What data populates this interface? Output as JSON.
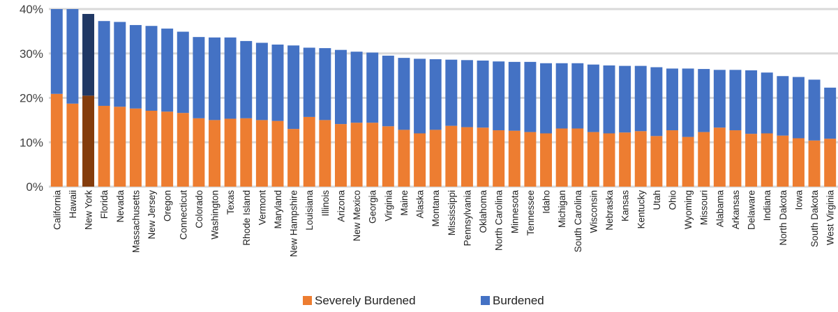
{
  "chart_data": {
    "type": "bar",
    "stacked": true,
    "ylim": [
      0,
      40
    ],
    "yticks": [
      "0%",
      "10%",
      "20%",
      "30%",
      "40%"
    ],
    "ytick_values": [
      0,
      10,
      20,
      30,
      40
    ],
    "grid": true,
    "legend_position": "bottom",
    "categories": [
      "California",
      "Hawaii",
      "New York",
      "Florida",
      "Nevada",
      "Massachusetts",
      "New Jersey",
      "Oregon",
      "Connecticut",
      "Colorado",
      "Washington",
      "Texas",
      "Rhode Island",
      "Vermont",
      "Maryland",
      "New Hampshire",
      "Louisiana",
      "Illinois",
      "Arizona",
      "New Mexico",
      "Georgia",
      "Virginia",
      "Maine",
      "Alaska",
      "Montana",
      "Mississippi",
      "Pennsylvania",
      "Oklahoma",
      "North Carolina",
      "Minnesota",
      "Tennessee",
      "Idaho",
      "Michigan",
      "South Carolina",
      "Wisconsin",
      "Nebraska",
      "Kansas",
      "Kentucky",
      "Utah",
      "Ohio",
      "Wyoming",
      "Missouri",
      "Alabama",
      "Arkansas",
      "Delaware",
      "Indiana",
      "North Dakota",
      "Iowa",
      "South Dakota",
      "West Virginia"
    ],
    "highlight_category": "New York",
    "series": [
      {
        "name": "Severely Burdened",
        "color": "#ED7D31",
        "highlight_color": "#843C0C",
        "values": [
          20.9,
          18.7,
          20.5,
          18.2,
          18.0,
          17.6,
          17.1,
          16.9,
          16.6,
          15.4,
          15.0,
          15.3,
          15.4,
          15.0,
          14.8,
          13.0,
          15.7,
          15.0,
          14.1,
          14.4,
          14.4,
          13.6,
          12.8,
          12.0,
          12.8,
          13.7,
          13.4,
          13.3,
          12.7,
          12.6,
          12.3,
          12.0,
          13.1,
          13.1,
          12.3,
          12.0,
          12.2,
          12.5,
          11.4,
          12.7,
          11.2,
          12.3,
          13.3,
          12.7,
          11.9,
          12.0,
          11.5,
          10.9,
          10.4,
          10.8
        ]
      },
      {
        "name": "Burdened",
        "color": "#4472C4",
        "highlight_color": "#203864",
        "values": [
          19.1,
          21.3,
          18.4,
          19.1,
          19.1,
          18.8,
          19.1,
          18.7,
          18.3,
          18.3,
          18.6,
          18.3,
          17.4,
          17.4,
          17.2,
          18.8,
          15.6,
          16.2,
          16.7,
          16.0,
          15.8,
          15.9,
          16.2,
          16.8,
          15.9,
          14.9,
          15.1,
          15.1,
          15.5,
          15.5,
          15.8,
          15.8,
          14.7,
          14.7,
          15.2,
          15.3,
          15.0,
          14.7,
          15.5,
          13.9,
          15.4,
          14.2,
          13.0,
          13.6,
          14.3,
          13.7,
          13.4,
          13.8,
          13.7,
          11.5
        ]
      }
    ]
  }
}
